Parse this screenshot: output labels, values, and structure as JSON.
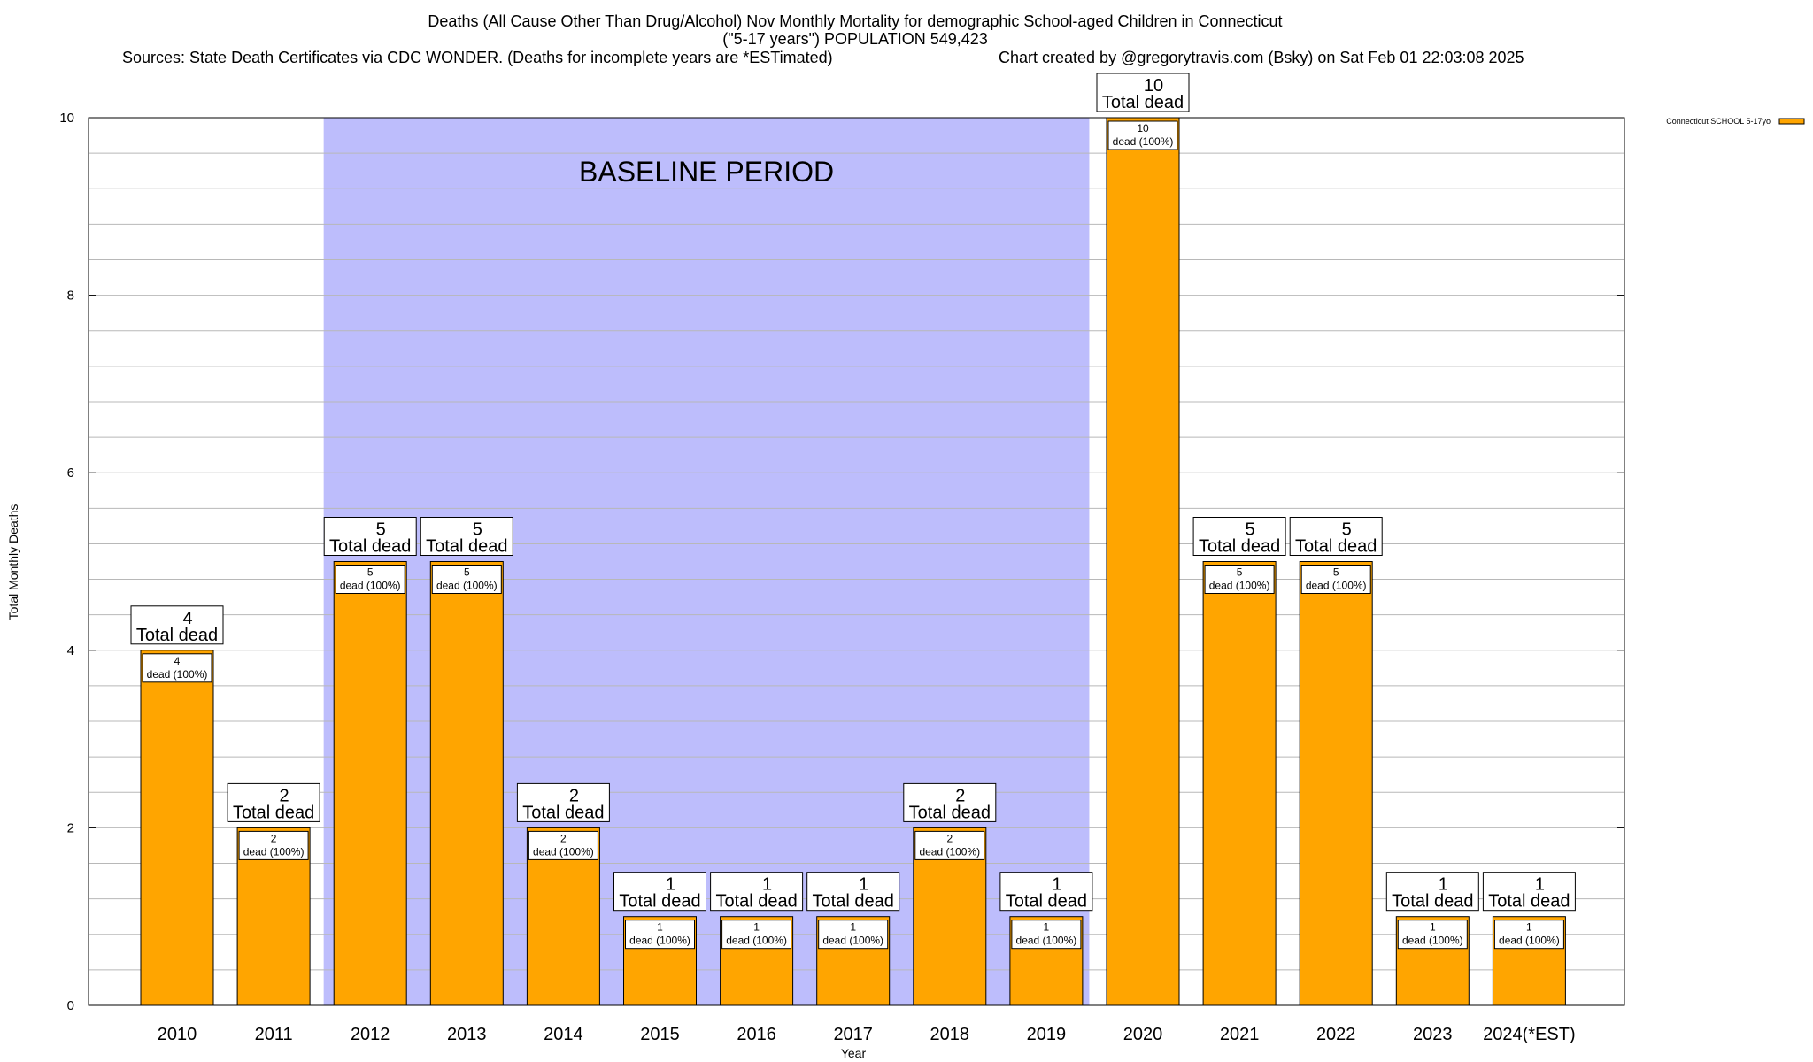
{
  "chart_data": {
    "type": "bar",
    "title_line1": "Deaths (All Cause Other Than Drug/Alcohol) Nov Monthly Mortality for demographic School-aged Children in Connecticut",
    "title_line2": "(\"5-17 years\") POPULATION 549,423",
    "sources": "Sources: State Death Certificates via CDC WONDER. (Deaths for incomplete years are *ESTimated)",
    "credit": "Chart created by @gregorytravis.com (Bsky) on Sat Feb 01 22:03:08 2025",
    "xlabel": "Year",
    "ylabel": "Total Monthly Deaths",
    "ylim": [
      0,
      10
    ],
    "yticks": [
      "0",
      "2",
      "4",
      "6",
      "8",
      "10"
    ],
    "grid": true,
    "legend": {
      "label": "Connecticut SCHOOL 5-17yo",
      "position": "top-right"
    },
    "series_color": "#ffa500",
    "baseline": {
      "label": "BASELINE PERIOD",
      "start": "2012",
      "end": "2019",
      "color": "#bdbdfc"
    },
    "categories": [
      "2010",
      "2011",
      "2012",
      "2013",
      "2014",
      "2015",
      "2016",
      "2017",
      "2018",
      "2019",
      "2020",
      "2021",
      "2022",
      "2023",
      "2024(*EST)"
    ],
    "values": [
      4,
      2,
      5,
      5,
      2,
      1,
      1,
      1,
      2,
      1,
      10,
      5,
      5,
      1,
      1
    ],
    "box_labels": [
      "4",
      "2",
      "5",
      "5",
      "2",
      "1",
      "1",
      "1",
      "2",
      "1",
      "10",
      "5",
      "5",
      "1",
      "1"
    ],
    "box_label_suffix": "Total dead",
    "inner_labels": [
      "4",
      "2",
      "5",
      "5",
      "2",
      "1",
      "1",
      "1",
      "2",
      "1",
      "10",
      "5",
      "5",
      "1",
      "1"
    ],
    "inner_label_suffix": "dead (100%)"
  }
}
